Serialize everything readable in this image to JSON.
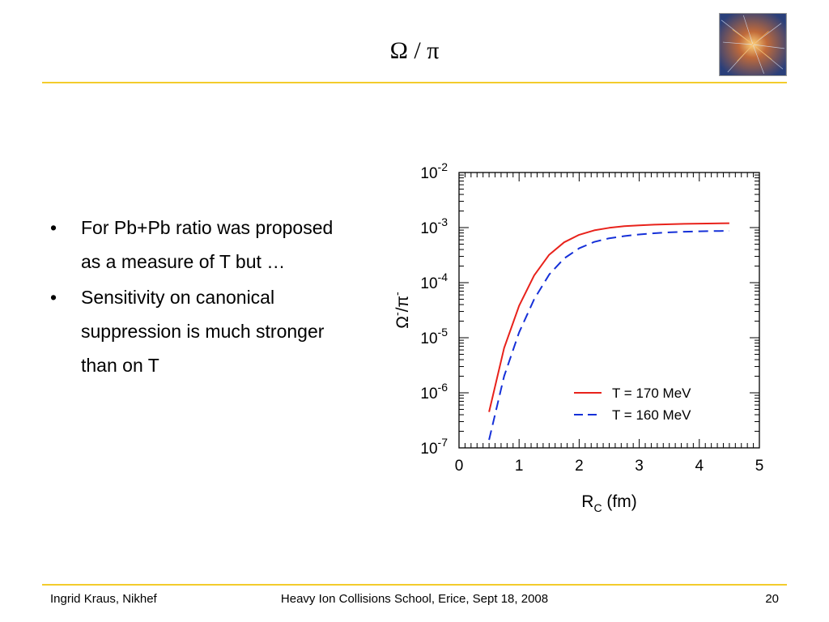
{
  "slide": {
    "title": "Ω / π",
    "bullets": [
      "For Pb+Pb ratio was proposed as a measure of T but …",
      "Sensitivity on canonical suppression is much stronger than on T"
    ],
    "footer_left": "Ingrid Kraus, Nikhef",
    "footer_center": "Heavy Ion Collisions School, Erice, Sept 18, 2008",
    "page_number": "20",
    "accent_color": "#f3cc2c"
  },
  "chart_data": {
    "type": "line",
    "xlabel": "R",
    "xlabel_sub": "C",
    "xlabel_unit": " (fm)",
    "ylabel_base1": "Ω",
    "ylabel_sup1": "-",
    "ylabel_sep": "/",
    "ylabel_base2": "π",
    "ylabel_sup2": "-",
    "xlim": [
      0,
      5
    ],
    "ylim": [
      1e-07,
      0.01
    ],
    "yscale": "log",
    "x_ticks": [
      "0",
      "1",
      "2",
      "3",
      "4",
      "5"
    ],
    "y_ticks": [
      {
        "base": "10",
        "exp": "-2"
      },
      {
        "base": "10",
        "exp": "-3"
      },
      {
        "base": "10",
        "exp": "-4"
      },
      {
        "base": "10",
        "exp": "-5"
      },
      {
        "base": "10",
        "exp": "-6"
      },
      {
        "base": "10",
        "exp": "-7"
      }
    ],
    "legend_position": "bottom-right",
    "series": [
      {
        "name": "T = 170 MeV",
        "color": "#e8221b",
        "dash": "solid",
        "x": [
          0.5,
          0.75,
          1.0,
          1.25,
          1.5,
          1.75,
          2.0,
          2.25,
          2.5,
          2.75,
          3.0,
          3.25,
          3.5,
          3.75,
          4.0,
          4.25,
          4.5
        ],
        "y": [
          4.5e-07,
          6.5e-06,
          3.8e-05,
          0.000135,
          0.00032,
          0.00054,
          0.00074,
          0.00089,
          0.00099,
          0.00106,
          0.0011,
          0.00113,
          0.00115,
          0.00117,
          0.00118,
          0.00119,
          0.0012
        ]
      },
      {
        "name": "T = 160 MeV",
        "color": "#1530d8",
        "dash": "dashed",
        "x": [
          0.5,
          0.75,
          1.0,
          1.25,
          1.5,
          1.75,
          2.0,
          2.25,
          2.5,
          2.75,
          3.0,
          3.25,
          3.5,
          3.75,
          4.0,
          4.25,
          4.5
        ],
        "y": [
          1.4e-07,
          2e-06,
          1.25e-05,
          5e-05,
          0.00014,
          0.000275,
          0.00042,
          0.00055,
          0.00064,
          0.0007,
          0.00075,
          0.00079,
          0.00082,
          0.00084,
          0.000855,
          0.000865,
          0.00087
        ]
      }
    ]
  }
}
